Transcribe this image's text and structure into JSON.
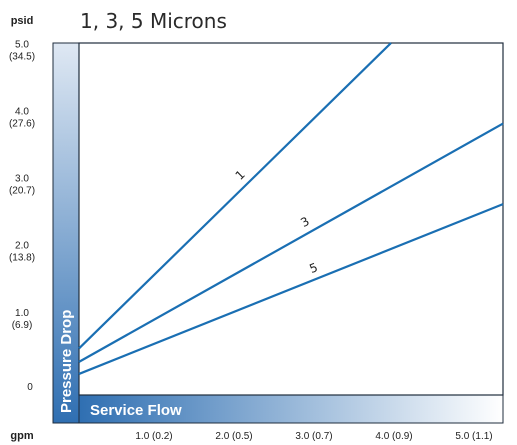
{
  "chart_data": {
    "type": "line",
    "title": "1, 3, 5 Microns",
    "y_unit_label": "psid",
    "x_unit_label": "gpm",
    "ylabel": "Pressure Drop",
    "xlabel": "Service Flow",
    "y_ticks": [
      {
        "value": 5,
        "line1": "5.0",
        "line2": "(34.5)"
      },
      {
        "value": 4,
        "line1": "4.0",
        "line2": "(27.6)"
      },
      {
        "value": 3,
        "line1": "3.0",
        "line2": "(20.7)"
      },
      {
        "value": 2,
        "line1": "2.0",
        "line2": "(13.8)"
      },
      {
        "value": 1,
        "line1": "1.0",
        "line2": "(6.9)"
      },
      {
        "value": 0,
        "line1": "0",
        "line2": ""
      }
    ],
    "x_ticks": [
      {
        "value": 1,
        "label": "1.0 (0.2)"
      },
      {
        "value": 2,
        "label": "2.0 (0.5)"
      },
      {
        "value": 3,
        "label": "3.0 (0.7)"
      },
      {
        "value": 4,
        "label": "4.0 (0.9)"
      },
      {
        "value": 5,
        "label": "5.0 (1.1)"
      }
    ],
    "xlim": [
      0,
      5.3
    ],
    "ylim": [
      0,
      5.05
    ],
    "grid": false,
    "series": [
      {
        "name": "1",
        "x": [
          0,
          3.9
        ],
        "y": [
          0.5,
          5.05
        ]
      },
      {
        "name": "3",
        "x": [
          0,
          5.3
        ],
        "y": [
          0.3,
          3.85
        ]
      },
      {
        "name": "5",
        "x": [
          0,
          5.3
        ],
        "y": [
          0.12,
          2.65
        ]
      }
    ],
    "line_color": "#1a6fb3",
    "band_color": "#1a6fb3"
  }
}
